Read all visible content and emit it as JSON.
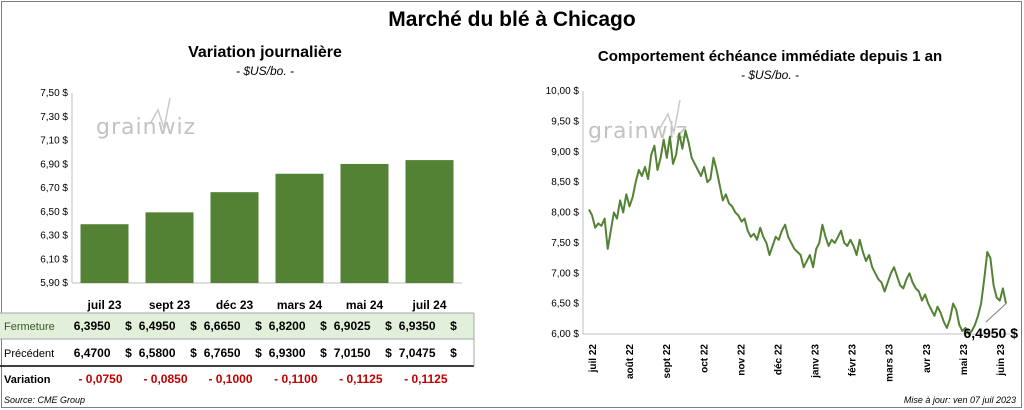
{
  "title": "Marché du blé à Chicago",
  "source": "Source: CME Group",
  "updated": "Mise à jour: ven 07 juil 2023",
  "colors": {
    "bar": "#548235",
    "line": "#548235",
    "highlight_row": "#e2efda",
    "negative": "#c00000"
  },
  "chart_data": [
    {
      "type": "bar",
      "title": "Variation  journalière",
      "subtitle": "- $US/bo. -",
      "categories": [
        "juil 23",
        "sept 23",
        "déc 23",
        "mars 24",
        "mai 24",
        "juil 24"
      ],
      "values": [
        6.395,
        6.495,
        6.665,
        6.82,
        6.9025,
        6.935
      ],
      "ylim": [
        5.9,
        7.5
      ],
      "yticks": [
        "5,90 $",
        "6,10 $",
        "6,30 $",
        "6,50 $",
        "6,70 $",
        "6,90 $",
        "7,10 $",
        "7,30 $",
        "7,50 $"
      ],
      "ytick_values": [
        5.9,
        6.1,
        6.3,
        6.5,
        6.7,
        6.9,
        7.1,
        7.3,
        7.5
      ],
      "grid": false,
      "watermark": "grainwiz",
      "table": {
        "rows": [
          {
            "label": "Fermeture",
            "values": [
              "6,3950",
              "6,4950",
              "6,6650",
              "6,8200",
              "6,9025",
              "6,9350"
            ],
            "unit": "$",
            "highlight": true
          },
          {
            "label": "Précédent",
            "values": [
              "6,4700",
              "6,5800",
              "6,7650",
              "6,9300",
              "7,0150",
              "7,0475"
            ],
            "unit": "$"
          },
          {
            "label": "Variation",
            "values": [
              "- 0,0750",
              "- 0,0850",
              "- 0,1000",
              "- 0,1100",
              "- 0,1125",
              "- 0,1125"
            ],
            "unit": "",
            "negative": true
          }
        ]
      }
    },
    {
      "type": "line",
      "title": "Comportement  échéance immédiate depuis 1 an",
      "subtitle": "- $US/bo. -",
      "ylim": [
        6.0,
        10.0
      ],
      "yticks": [
        "6,00 $",
        "6,50 $",
        "7,00 $",
        "7,50 $",
        "8,00 $",
        "8,50 $",
        "9,00 $",
        "9,50 $",
        "10,00 $"
      ],
      "ytick_values": [
        6.0,
        6.5,
        7.0,
        7.5,
        8.0,
        8.5,
        9.0,
        9.5,
        10.0
      ],
      "xticks": [
        "juil 22",
        "août 22",
        "sept 22",
        "oct 22",
        "nov 22",
        "déc 22",
        "janv 23",
        "févr 23",
        "mars 23",
        "avr 23",
        "mai 23",
        "juin 23"
      ],
      "last_value_label": "6,4950 $",
      "watermark": "grainwiz",
      "series": [
        {
          "values": [
            8.05,
            7.95,
            7.75,
            7.82,
            7.78,
            7.9,
            7.4,
            7.7,
            8.0,
            7.9,
            8.2,
            8.0,
            8.3,
            8.1,
            8.25,
            8.5,
            8.7,
            8.6,
            8.75,
            8.55,
            8.95,
            9.1,
            8.7,
            8.9,
            9.2,
            8.9,
            9.25,
            8.8,
            8.95,
            9.3,
            9.05,
            9.35,
            9.15,
            8.9,
            8.8,
            8.7,
            8.6,
            8.75,
            8.5,
            8.55,
            8.9,
            8.7,
            8.45,
            8.2,
            8.3,
            8.15,
            8.1,
            8.0,
            7.95,
            7.85,
            7.9,
            7.7,
            7.6,
            7.65,
            7.55,
            7.75,
            7.6,
            7.5,
            7.3,
            7.45,
            7.6,
            7.55,
            7.7,
            7.8,
            7.6,
            7.5,
            7.4,
            7.35,
            7.3,
            7.1,
            7.2,
            7.3,
            7.1,
            7.4,
            7.5,
            7.8,
            7.6,
            7.45,
            7.55,
            7.5,
            7.6,
            7.7,
            7.5,
            7.45,
            7.55,
            7.45,
            7.3,
            7.55,
            7.35,
            7.2,
            7.3,
            7.1,
            7.0,
            6.9,
            6.85,
            6.7,
            6.85,
            7.0,
            7.1,
            6.95,
            6.8,
            6.75,
            6.9,
            7.0,
            6.85,
            6.75,
            6.7,
            6.55,
            6.65,
            6.5,
            6.4,
            6.3,
            6.45,
            6.35,
            6.2,
            6.1,
            6.25,
            6.5,
            6.4,
            6.15,
            6.05,
            6.1,
            6.0,
            6.05,
            6.15,
            6.3,
            6.5,
            6.9,
            7.35,
            7.25,
            6.8,
            6.6,
            6.55,
            6.75,
            6.5
          ]
        }
      ]
    }
  ]
}
